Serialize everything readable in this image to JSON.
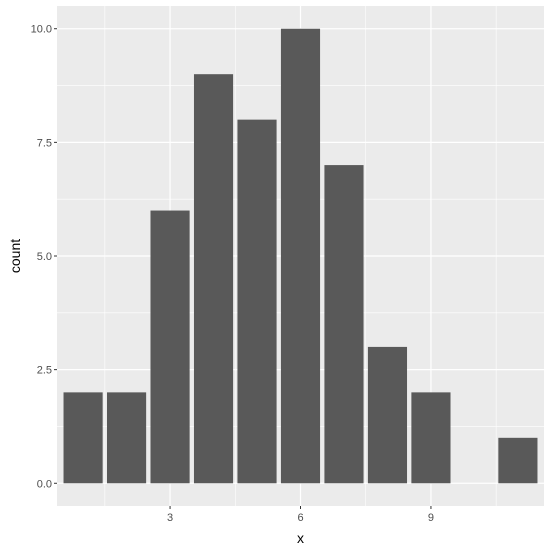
{
  "chart_data": {
    "type": "bar",
    "x": [
      1,
      2,
      3,
      4,
      5,
      6,
      7,
      8,
      9,
      10,
      11
    ],
    "values": [
      2,
      2,
      6,
      9,
      8,
      10,
      7,
      3,
      2,
      0,
      1
    ],
    "xlabel": "x",
    "ylabel": "count",
    "xticks": [
      3,
      6,
      9
    ],
    "xtick_labels": [
      "3",
      "6",
      "9"
    ],
    "yticks": [
      0,
      2.5,
      5,
      7.5,
      10
    ],
    "ytick_labels": [
      "0.0",
      "2.5",
      "5.0",
      "7.5",
      "10.0"
    ],
    "xlim": [
      0.4,
      11.6
    ],
    "ylim": [
      -0.5,
      10.5
    ],
    "grid": true,
    "legend": "none",
    "colors": {
      "bar": "#595959",
      "panel": "#ebebeb",
      "grid": "#ffffff",
      "tick_text": "#4d4d4d",
      "tick_mark": "#333333"
    }
  }
}
